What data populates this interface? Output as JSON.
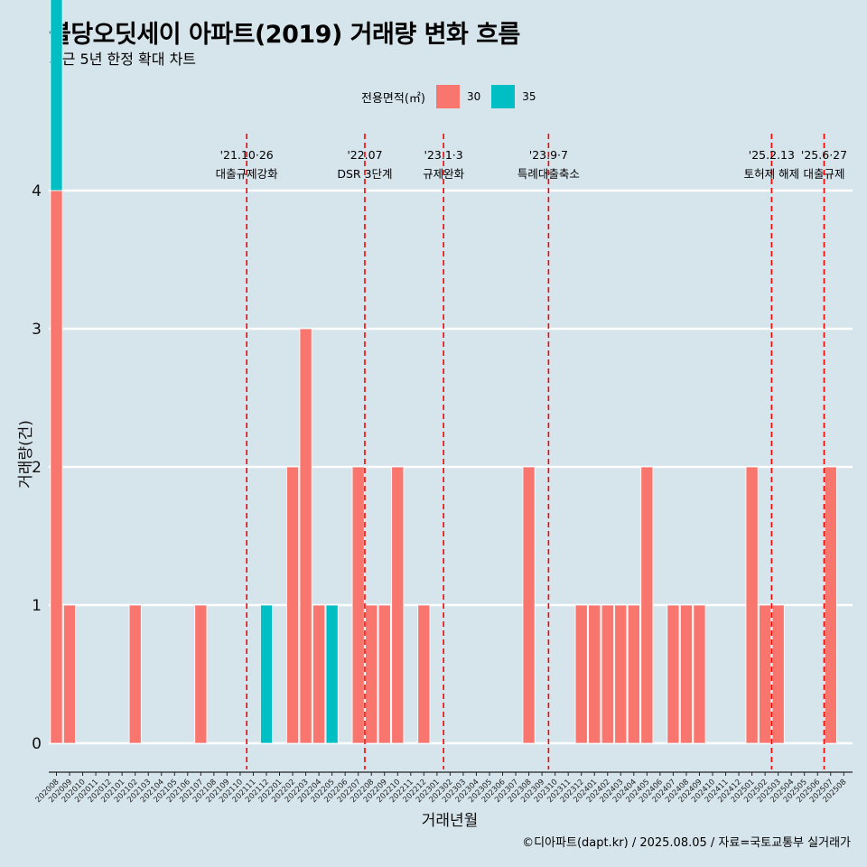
{
  "title": "불당오딧세이 아파트(2019) 거래량 변화 흐름",
  "subtitle": "최근 5년 한정 확대 차트",
  "caption": "©디아파트(dapt.kr) / 2025.08.05 / 자료=국토교통부 실거래가",
  "legend": {
    "title": "전용면적(㎡)",
    "items": [
      {
        "label": "30",
        "color": "#f8766d"
      },
      {
        "label": "35",
        "color": "#00bfc4"
      }
    ]
  },
  "chart_data": {
    "type": "bar",
    "xlabel": "거래년월",
    "ylabel": "거래량(건)",
    "ylim": [
      0,
      4
    ],
    "yticks": [
      0,
      1,
      2,
      3,
      4
    ],
    "grid": true,
    "categories": [
      "202008",
      "202009",
      "202010",
      "202011",
      "202012",
      "202101",
      "202102",
      "202103",
      "202104",
      "202105",
      "202106",
      "202107",
      "202108",
      "202109",
      "202110",
      "202111",
      "202112",
      "202201",
      "202202",
      "202203",
      "202204",
      "202205",
      "202206",
      "202207",
      "202208",
      "202209",
      "202210",
      "202211",
      "202212",
      "202301",
      "202302",
      "202303",
      "202304",
      "202305",
      "202306",
      "202307",
      "202308",
      "202309",
      "202310",
      "202311",
      "202312",
      "202401",
      "202402",
      "202403",
      "202404",
      "202405",
      "202406",
      "202407",
      "202408",
      "202409",
      "202410",
      "202411",
      "202412",
      "202501",
      "202502",
      "202503",
      "202504",
      "202505",
      "202506",
      "202507",
      "202508"
    ],
    "series": [
      {
        "name": "30",
        "color": "#f8766d",
        "values": [
          4,
          1,
          0,
          0,
          0,
          0,
          1,
          0,
          0,
          0,
          0,
          1,
          0,
          0,
          0,
          0,
          0,
          0,
          2,
          3,
          1,
          0,
          0,
          2,
          1,
          1,
          2,
          0,
          1,
          0,
          0,
          0,
          0,
          0,
          0,
          0,
          2,
          0,
          0,
          0,
          1,
          1,
          1,
          1,
          1,
          2,
          0,
          1,
          1,
          1,
          0,
          0,
          0,
          2,
          1,
          1,
          0,
          0,
          0,
          2,
          0
        ]
      },
      {
        "name": "35",
        "color": "#00bfc4",
        "values": [
          2,
          0,
          0,
          0,
          0,
          0,
          0,
          0,
          0,
          0,
          0,
          0,
          0,
          0,
          0,
          0,
          1,
          0,
          0,
          0,
          0,
          1,
          0,
          0,
          0,
          0,
          0,
          0,
          0,
          0,
          0,
          0,
          0,
          0,
          0,
          0,
          0,
          0,
          0,
          0,
          0,
          0,
          0,
          0,
          0,
          0,
          0,
          0,
          0,
          0,
          0,
          0,
          0,
          0,
          0,
          0,
          0,
          0,
          0,
          0,
          0
        ]
      }
    ],
    "annotations": [
      {
        "at": "202110",
        "date": "'21.10·26",
        "text": "대출규제강화"
      },
      {
        "at": "202207",
        "date": "'22.07",
        "text": "DSR 3단계"
      },
      {
        "at": "202301",
        "date": "'23.1·3",
        "text": "규제완화"
      },
      {
        "at": "202309",
        "date": "'23.9·7",
        "text": "특례대출축소"
      },
      {
        "at": "202502",
        "date": "'25.2.13",
        "text": "토허제 해제"
      },
      {
        "at": "202506",
        "date": "'25.6·27",
        "text": "대출규제"
      }
    ]
  }
}
